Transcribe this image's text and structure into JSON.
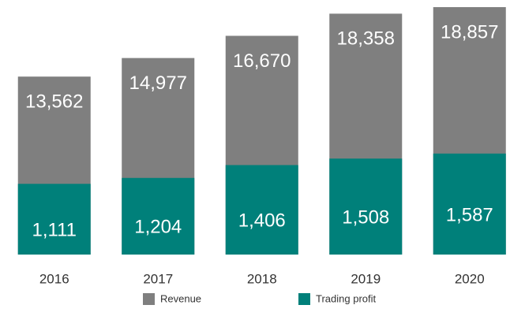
{
  "chart_data": {
    "type": "bar",
    "categories": [
      "2016",
      "2017",
      "2018",
      "2019",
      "2020"
    ],
    "series": [
      {
        "name": "Revenue",
        "color": "#7f7f7f",
        "values": [
          13562,
          14977,
          16670,
          18358,
          18857
        ],
        "value_labels": [
          "13,562",
          "14,977",
          "16,670",
          "18,358",
          "18,857"
        ]
      },
      {
        "name": "Trading profit",
        "color": "#00807a",
        "axis": "y2",
        "values": [
          1111,
          1204,
          1406,
          1508,
          1587
        ],
        "value_labels": [
          "1,111",
          "1,204",
          "1,406",
          "1,508",
          "1,587"
        ]
      }
    ],
    "ylim": [
      0,
      19400
    ],
    "y2lim": [
      0,
      4000
    ]
  }
}
